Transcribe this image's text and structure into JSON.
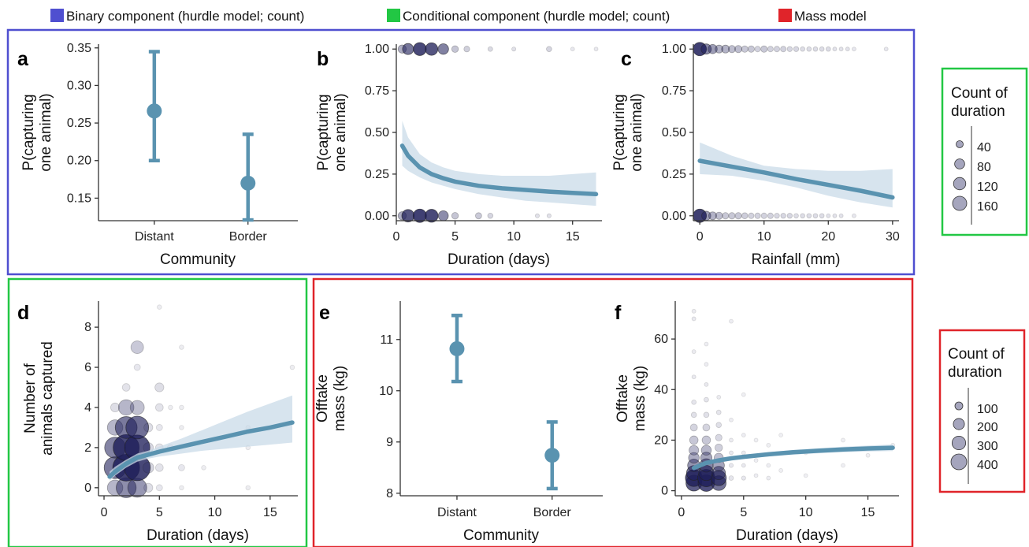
{
  "top_legend": [
    {
      "label": "Binary component (hurdle model; count)",
      "color": "#4f4fd0"
    },
    {
      "label": "Conditional component (hurdle model; count)",
      "color": "#22c744"
    },
    {
      "label": "Mass model",
      "color": "#e0242a"
    }
  ],
  "size_legends": [
    {
      "title_line1": "Count of",
      "title_line2": "duration",
      "labels": [
        "40",
        "80",
        "120",
        "160"
      ],
      "values": [
        40,
        80,
        120,
        160
      ],
      "frame_color": "#22c744"
    },
    {
      "title_line1": "Count of",
      "title_line2": "duration",
      "labels": [
        "100",
        "200",
        "300",
        "400"
      ],
      "values": [
        100,
        200,
        300,
        400
      ],
      "frame_color": "#e0242a"
    }
  ],
  "colors": {
    "line": "#5a93b0",
    "ribbon": "#c9dbe8",
    "point": "#1f1f5a",
    "blue_frame": "#4f4fd0",
    "green_frame": "#22c744",
    "red_frame": "#e0242a"
  },
  "chart_data": [
    {
      "panel": "a",
      "type": "scatter",
      "ylabel_line1": "P(capturing",
      "ylabel_line2": "one animal)",
      "xlabel": "Community",
      "categories": [
        "Distant",
        "Border"
      ],
      "estimate": [
        0.266,
        0.17
      ],
      "lower": [
        0.2,
        0.121
      ],
      "upper": [
        0.345,
        0.235
      ],
      "yticks": [
        "0.15",
        "0.20",
        "0.25",
        "0.30",
        "0.35"
      ],
      "ylim": [
        0.12,
        0.355
      ]
    },
    {
      "panel": "b",
      "type": "line",
      "ylabel_line1": "P(capturing",
      "ylabel_line2": "one animal)",
      "xlabel": "Duration (days)",
      "xlim": [
        0,
        17.5
      ],
      "ylim": [
        0,
        1
      ],
      "xticks": [
        "0",
        "5",
        "10",
        "15"
      ],
      "yticks": [
        "0.00",
        "0.25",
        "0.50",
        "0.75",
        "1.00"
      ],
      "fit": {
        "x": [
          0.5,
          1,
          2,
          3,
          4,
          5,
          7,
          9,
          11,
          13,
          15,
          17
        ],
        "y": [
          0.42,
          0.36,
          0.29,
          0.25,
          0.225,
          0.205,
          0.18,
          0.165,
          0.155,
          0.145,
          0.137,
          0.13
        ],
        "lower": [
          0.3,
          0.27,
          0.23,
          0.2,
          0.18,
          0.16,
          0.13,
          0.11,
          0.09,
          0.08,
          0.07,
          0.06
        ],
        "upper": [
          0.57,
          0.47,
          0.37,
          0.32,
          0.29,
          0.27,
          0.25,
          0.24,
          0.24,
          0.24,
          0.25,
          0.26
        ]
      },
      "points_top": [
        {
          "x": 0.5,
          "n": 60
        },
        {
          "x": 1,
          "n": 110
        },
        {
          "x": 2,
          "n": 150
        },
        {
          "x": 3,
          "n": 140
        },
        {
          "x": 4,
          "n": 100
        },
        {
          "x": 5,
          "n": 40
        },
        {
          "x": 6,
          "n": 30
        },
        {
          "x": 8,
          "n": 20
        },
        {
          "x": 10,
          "n": 15
        },
        {
          "x": 13,
          "n": 25
        },
        {
          "x": 15,
          "n": 8
        },
        {
          "x": 17,
          "n": 8
        }
      ],
      "points_bottom": [
        {
          "x": 0.5,
          "n": 60
        },
        {
          "x": 1,
          "n": 140
        },
        {
          "x": 2,
          "n": 160
        },
        {
          "x": 3,
          "n": 150
        },
        {
          "x": 4,
          "n": 90
        },
        {
          "x": 5,
          "n": 40
        },
        {
          "x": 7,
          "n": 35
        },
        {
          "x": 8,
          "n": 25
        },
        {
          "x": 12,
          "n": 15
        },
        {
          "x": 13,
          "n": 15
        }
      ]
    },
    {
      "panel": "c",
      "type": "line",
      "ylabel_line1": "P(capturing",
      "ylabel_line2": "one animal)",
      "xlabel": "Rainfall (mm)",
      "xlim": [
        -1,
        31
      ],
      "ylim": [
        0,
        1
      ],
      "xticks": [
        "0",
        "10",
        "20",
        "30"
      ],
      "yticks": [
        "0.00",
        "0.25",
        "0.50",
        "0.75",
        "1.00"
      ],
      "fit": {
        "x": [
          0,
          5,
          10,
          15,
          20,
          25,
          30
        ],
        "y": [
          0.33,
          0.295,
          0.26,
          0.22,
          0.185,
          0.15,
          0.11
        ],
        "lower": [
          0.25,
          0.24,
          0.21,
          0.17,
          0.12,
          0.08,
          0.05
        ],
        "upper": [
          0.44,
          0.36,
          0.3,
          0.28,
          0.27,
          0.27,
          0.28
        ]
      },
      "points_top": [
        {
          "x": 0,
          "n": 170
        },
        {
          "x": 1,
          "n": 100
        },
        {
          "x": 2,
          "n": 80
        },
        {
          "x": 3,
          "n": 60
        },
        {
          "x": 4,
          "n": 60
        },
        {
          "x": 5,
          "n": 50
        },
        {
          "x": 6,
          "n": 50
        },
        {
          "x": 7,
          "n": 40
        },
        {
          "x": 8,
          "n": 40
        },
        {
          "x": 9,
          "n": 30
        },
        {
          "x": 10,
          "n": 40
        },
        {
          "x": 11,
          "n": 30
        },
        {
          "x": 12,
          "n": 30
        },
        {
          "x": 13,
          "n": 30
        },
        {
          "x": 14,
          "n": 25
        },
        {
          "x": 15,
          "n": 25
        },
        {
          "x": 16,
          "n": 20
        },
        {
          "x": 17,
          "n": 20
        },
        {
          "x": 18,
          "n": 20
        },
        {
          "x": 19,
          "n": 20
        },
        {
          "x": 20,
          "n": 20
        },
        {
          "x": 21,
          "n": 15
        },
        {
          "x": 22,
          "n": 15
        },
        {
          "x": 23,
          "n": 15
        },
        {
          "x": 24,
          "n": 10
        },
        {
          "x": 29,
          "n": 10
        }
      ],
      "points_bottom": [
        {
          "x": 0,
          "n": 170
        },
        {
          "x": 1,
          "n": 80
        },
        {
          "x": 2,
          "n": 60
        },
        {
          "x": 3,
          "n": 50
        },
        {
          "x": 4,
          "n": 40
        },
        {
          "x": 5,
          "n": 40
        },
        {
          "x": 6,
          "n": 40
        },
        {
          "x": 7,
          "n": 35
        },
        {
          "x": 8,
          "n": 30
        },
        {
          "x": 9,
          "n": 30
        },
        {
          "x": 10,
          "n": 30
        },
        {
          "x": 11,
          "n": 30
        },
        {
          "x": 12,
          "n": 25
        },
        {
          "x": 13,
          "n": 25
        },
        {
          "x": 14,
          "n": 25
        },
        {
          "x": 15,
          "n": 20
        },
        {
          "x": 16,
          "n": 20
        },
        {
          "x": 17,
          "n": 20
        },
        {
          "x": 18,
          "n": 20
        },
        {
          "x": 19,
          "n": 20
        },
        {
          "x": 20,
          "n": 15
        },
        {
          "x": 21,
          "n": 15
        },
        {
          "x": 22,
          "n": 15
        },
        {
          "x": 24,
          "n": 10
        }
      ]
    },
    {
      "panel": "d",
      "type": "line",
      "ylabel_line1": "Number of",
      "ylabel_line2": "animals captured",
      "xlabel": "Duration (days)",
      "xlim": [
        -0.5,
        17.5
      ],
      "ylim": [
        -0.4,
        9.3
      ],
      "xticks": [
        "0",
        "5",
        "10",
        "15"
      ],
      "yticks": [
        "0",
        "2",
        "4",
        "6",
        "8"
      ],
      "fit": {
        "x": [
          0.5,
          1,
          2,
          3,
          4,
          5,
          7,
          9,
          11,
          13,
          15,
          17
        ],
        "y": [
          0.55,
          0.8,
          1.2,
          1.5,
          1.65,
          1.8,
          2.05,
          2.3,
          2.55,
          2.8,
          3.0,
          3.25
        ],
        "lower": [
          0.35,
          0.6,
          1.0,
          1.3,
          1.45,
          1.55,
          1.7,
          1.85,
          1.95,
          2.05,
          2.15,
          2.25
        ],
        "upper": [
          0.8,
          1.05,
          1.4,
          1.7,
          1.85,
          2.05,
          2.45,
          2.9,
          3.35,
          3.8,
          4.2,
          4.6
        ]
      },
      "points": [
        {
          "x": 1,
          "y": 0,
          "n": 60
        },
        {
          "x": 2,
          "y": 0,
          "n": 100
        },
        {
          "x": 3,
          "y": 0,
          "n": 90
        },
        {
          "x": 4,
          "y": 0,
          "n": 20
        },
        {
          "x": 5,
          "y": 0,
          "n": 10
        },
        {
          "x": 7,
          "y": 0,
          "n": 5
        },
        {
          "x": 13,
          "y": 0,
          "n": 5
        },
        {
          "x": 1,
          "y": 1,
          "n": 120
        },
        {
          "x": 2,
          "y": 1,
          "n": 180
        },
        {
          "x": 3,
          "y": 1,
          "n": 170
        },
        {
          "x": 4,
          "y": 1,
          "n": 30
        },
        {
          "x": 5,
          "y": 1,
          "n": 15
        },
        {
          "x": 7,
          "y": 1,
          "n": 10
        },
        {
          "x": 9,
          "y": 1,
          "n": 5
        },
        {
          "x": 1,
          "y": 2,
          "n": 110
        },
        {
          "x": 2,
          "y": 2,
          "n": 170
        },
        {
          "x": 3,
          "y": 2,
          "n": 160
        },
        {
          "x": 4,
          "y": 2,
          "n": 25
        },
        {
          "x": 5,
          "y": 2,
          "n": 15
        },
        {
          "x": 6,
          "y": 2,
          "n": 10
        },
        {
          "x": 13,
          "y": 2,
          "n": 5
        },
        {
          "x": 1,
          "y": 3,
          "n": 60
        },
        {
          "x": 2,
          "y": 3,
          "n": 120
        },
        {
          "x": 3,
          "y": 3,
          "n": 130
        },
        {
          "x": 4,
          "y": 3,
          "n": 20
        },
        {
          "x": 5,
          "y": 3,
          "n": 10
        },
        {
          "x": 7,
          "y": 3,
          "n": 5
        },
        {
          "x": 13,
          "y": 3,
          "n": 5
        },
        {
          "x": 1,
          "y": 4,
          "n": 20
        },
        {
          "x": 2,
          "y": 4,
          "n": 60
        },
        {
          "x": 3,
          "y": 4,
          "n": 50
        },
        {
          "x": 5,
          "y": 4,
          "n": 15
        },
        {
          "x": 6,
          "y": 4,
          "n": 5
        },
        {
          "x": 7,
          "y": 4,
          "n": 5
        },
        {
          "x": 2,
          "y": 5,
          "n": 15
        },
        {
          "x": 5,
          "y": 5,
          "n": 20
        },
        {
          "x": 3,
          "y": 6,
          "n": 10
        },
        {
          "x": 17,
          "y": 6,
          "n": 5
        },
        {
          "x": 3,
          "y": 7,
          "n": 40
        },
        {
          "x": 7,
          "y": 7,
          "n": 5
        },
        {
          "x": 5,
          "y": 9,
          "n": 5
        }
      ]
    },
    {
      "panel": "e",
      "type": "scatter",
      "ylabel_line1": "Offtake",
      "ylabel_line2": "mass (kg)",
      "xlabel": "Community",
      "categories": [
        "Distant",
        "Border"
      ],
      "estimate": [
        10.82,
        8.74
      ],
      "lower": [
        10.18,
        8.09
      ],
      "upper": [
        11.47,
        9.39
      ],
      "yticks": [
        "8",
        "9",
        "10",
        "11"
      ],
      "ylim": [
        7.95,
        11.75
      ]
    },
    {
      "panel": "f",
      "type": "line",
      "ylabel_line1": "Offtake",
      "ylabel_line2": "mass (kg)",
      "xlabel": "Duration (days)",
      "xlim": [
        -0.5,
        17.5
      ],
      "ylim": [
        -2,
        75
      ],
      "xticks": [
        "0",
        "5",
        "10",
        "15"
      ],
      "yticks": [
        "0",
        "20",
        "40",
        "60"
      ],
      "fit": {
        "x": [
          1,
          2,
          3,
          4,
          5,
          7,
          9,
          11,
          13,
          15,
          17
        ],
        "y": [
          9,
          11,
          12,
          12.8,
          13.4,
          14.4,
          15.2,
          15.8,
          16.3,
          16.7,
          17
        ],
        "lower": [
          8.2,
          10.3,
          11.3,
          12.1,
          12.7,
          13.6,
          14.3,
          14.8,
          15.2,
          15.5,
          15.7
        ],
        "upper": [
          9.8,
          11.7,
          12.7,
          13.5,
          14.1,
          15.2,
          16.1,
          16.8,
          17.4,
          17.9,
          18.3
        ]
      },
      "points": [
        {
          "x": 1,
          "y": 3,
          "n": 350
        },
        {
          "x": 1,
          "y": 5,
          "n": 400
        },
        {
          "x": 1,
          "y": 7,
          "n": 300
        },
        {
          "x": 1,
          "y": 10,
          "n": 220
        },
        {
          "x": 1,
          "y": 13,
          "n": 160
        },
        {
          "x": 1,
          "y": 16,
          "n": 130
        },
        {
          "x": 1,
          "y": 20,
          "n": 100
        },
        {
          "x": 1,
          "y": 25,
          "n": 70
        },
        {
          "x": 1,
          "y": 30,
          "n": 40
        },
        {
          "x": 1,
          "y": 35,
          "n": 30
        },
        {
          "x": 1,
          "y": 45,
          "n": 20
        },
        {
          "x": 1,
          "y": 55,
          "n": 15
        },
        {
          "x": 1,
          "y": 68,
          "n": 20
        },
        {
          "x": 1,
          "y": 71,
          "n": 15
        },
        {
          "x": 2,
          "y": 3,
          "n": 380
        },
        {
          "x": 2,
          "y": 5,
          "n": 420
        },
        {
          "x": 2,
          "y": 7,
          "n": 320
        },
        {
          "x": 2,
          "y": 10,
          "n": 250
        },
        {
          "x": 2,
          "y": 13,
          "n": 180
        },
        {
          "x": 2,
          "y": 16,
          "n": 140
        },
        {
          "x": 2,
          "y": 20,
          "n": 100
        },
        {
          "x": 2,
          "y": 25,
          "n": 70
        },
        {
          "x": 2,
          "y": 30,
          "n": 40
        },
        {
          "x": 2,
          "y": 36,
          "n": 30
        },
        {
          "x": 2,
          "y": 42,
          "n": 20
        },
        {
          "x": 2,
          "y": 50,
          "n": 10
        },
        {
          "x": 2,
          "y": 58,
          "n": 10
        },
        {
          "x": 3,
          "y": 3,
          "n": 300
        },
        {
          "x": 3,
          "y": 5,
          "n": 320
        },
        {
          "x": 3,
          "y": 7,
          "n": 250
        },
        {
          "x": 3,
          "y": 10,
          "n": 180
        },
        {
          "x": 3,
          "y": 13,
          "n": 120
        },
        {
          "x": 3,
          "y": 17,
          "n": 80
        },
        {
          "x": 3,
          "y": 21,
          "n": 60
        },
        {
          "x": 3,
          "y": 26,
          "n": 40
        },
        {
          "x": 3,
          "y": 31,
          "n": 30
        },
        {
          "x": 3,
          "y": 37,
          "n": 15
        },
        {
          "x": 4,
          "y": 5,
          "n": 30
        },
        {
          "x": 4,
          "y": 10,
          "n": 25
        },
        {
          "x": 4,
          "y": 15,
          "n": 20
        },
        {
          "x": 4,
          "y": 20,
          "n": 15
        },
        {
          "x": 4,
          "y": 28,
          "n": 10
        },
        {
          "x": 4,
          "y": 67,
          "n": 10
        },
        {
          "x": 5,
          "y": 5,
          "n": 25
        },
        {
          "x": 5,
          "y": 10,
          "n": 20
        },
        {
          "x": 5,
          "y": 15,
          "n": 15
        },
        {
          "x": 5,
          "y": 22,
          "n": 10
        },
        {
          "x": 5,
          "y": 38,
          "n": 5
        },
        {
          "x": 6,
          "y": 6,
          "n": 10
        },
        {
          "x": 6,
          "y": 12,
          "n": 8
        },
        {
          "x": 6,
          "y": 20,
          "n": 6
        },
        {
          "x": 7,
          "y": 5,
          "n": 10
        },
        {
          "x": 7,
          "y": 10,
          "n": 8
        },
        {
          "x": 7,
          "y": 18,
          "n": 6
        },
        {
          "x": 8,
          "y": 8,
          "n": 5
        },
        {
          "x": 8,
          "y": 22,
          "n": 5
        },
        {
          "x": 10,
          "y": 6,
          "n": 5
        },
        {
          "x": 10,
          "y": 15,
          "n": 5
        },
        {
          "x": 13,
          "y": 10,
          "n": 5
        },
        {
          "x": 13,
          "y": 20,
          "n": 5
        },
        {
          "x": 15,
          "y": 14,
          "n": 5
        },
        {
          "x": 17,
          "y": 18,
          "n": 5
        }
      ]
    }
  ]
}
